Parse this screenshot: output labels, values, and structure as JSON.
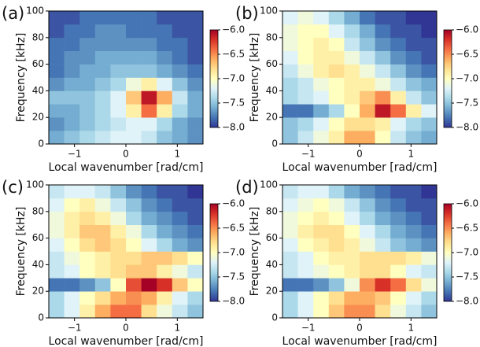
{
  "chart_data": [
    {
      "type": "heatmap",
      "title": "(a)",
      "xlabel": "Local wavenumber [rad/cm]",
      "ylabel": "Frequency [kHz]",
      "xlim": [
        -1.5,
        1.5
      ],
      "ylim": [
        0,
        100
      ],
      "xticks": [
        {
          "value": -1,
          "label": "−1"
        },
        0,
        1
      ],
      "yticks": [
        0,
        20,
        40,
        60,
        80,
        100
      ],
      "x_bins": [
        -1.5,
        -1.2,
        -0.9,
        -0.6,
        -0.3,
        0,
        0.3,
        0.6,
        0.9,
        1.2,
        1.5
      ],
      "y_bins": [
        0,
        10,
        20,
        30,
        40,
        50,
        60,
        70,
        80,
        90,
        100
      ],
      "zlim": [
        -8,
        -6
      ],
      "zticks": [
        {
          "value": -8,
          "label": "−8.0"
        },
        {
          "value": -7.5,
          "label": "−7.5"
        },
        {
          "value": -7,
          "label": "−7.0"
        },
        {
          "value": -6.5,
          "label": "−6.5"
        },
        {
          "value": -6,
          "label": "−6.0"
        }
      ],
      "colormap": [
        "#313695",
        "#4575b4",
        "#74add1",
        "#abd9e9",
        "#e0f3f8",
        "#ffffbf",
        "#fee090",
        "#fdae61",
        "#f46d43",
        "#d73027",
        "#a50026"
      ],
      "z": [
        [
          -7.6,
          -7.5,
          -7.4,
          -7.3,
          -7.2,
          -7.2,
          -7.3,
          -7.5,
          -7.6,
          -7.7
        ],
        [
          -7.7,
          -7.6,
          -7.5,
          -7.4,
          -7.3,
          -7.2,
          -7.2,
          -7.4,
          -7.6,
          -7.7
        ],
        [
          -7.6,
          -7.6,
          -7.5,
          -7.4,
          -7.2,
          -6.9,
          -6.4,
          -6.9,
          -7.4,
          -7.6
        ],
        [
          -7.5,
          -7.5,
          -7.5,
          -7.4,
          -7.2,
          -6.7,
          -6.1,
          -6.6,
          -7.3,
          -7.6
        ],
        [
          -7.7,
          -7.6,
          -7.6,
          -7.5,
          -7.4,
          -7.1,
          -6.9,
          -7.2,
          -7.5,
          -7.7
        ],
        [
          -7.8,
          -7.7,
          -7.6,
          -7.6,
          -7.5,
          -7.5,
          -7.5,
          -7.6,
          -7.7,
          -7.8
        ],
        [
          -7.8,
          -7.7,
          -7.7,
          -7.6,
          -7.6,
          -7.6,
          -7.6,
          -7.7,
          -7.8,
          -7.9
        ],
        [
          -7.8,
          -7.8,
          -7.7,
          -7.7,
          -7.7,
          -7.7,
          -7.7,
          -7.8,
          -7.8,
          -7.9
        ],
        [
          -7.9,
          -7.8,
          -7.8,
          -7.7,
          -7.7,
          -7.8,
          -7.8,
          -7.8,
          -7.9,
          -7.9
        ],
        [
          -7.9,
          -7.9,
          -7.8,
          -7.8,
          -7.8,
          -7.8,
          -7.8,
          -7.9,
          -7.9,
          -7.9
        ]
      ]
    },
    {
      "type": "heatmap",
      "title": "(b)",
      "xlabel": "Local wavenumber [rad/cm]",
      "ylabel": "Frequency [kHz]",
      "xlim": [
        -1.5,
        1.5
      ],
      "ylim": [
        0,
        100
      ],
      "xticks": [
        {
          "value": -1,
          "label": "−1"
        },
        0,
        1
      ],
      "yticks": [
        0,
        20,
        40,
        60,
        80,
        100
      ],
      "x_bins": [
        -1.5,
        -1.2,
        -0.9,
        -0.6,
        -0.3,
        0,
        0.3,
        0.6,
        0.9,
        1.2,
        1.5
      ],
      "y_bins": [
        0,
        10,
        20,
        30,
        40,
        50,
        60,
        70,
        80,
        90,
        100
      ],
      "zlim": [
        -8,
        -6
      ],
      "zticks": [
        {
          "value": -8,
          "label": "−8.0"
        },
        {
          "value": -7.5,
          "label": "−7.5"
        },
        {
          "value": -7,
          "label": "−7.0"
        },
        {
          "value": -6.5,
          "label": "−6.5"
        },
        {
          "value": -6,
          "label": "−6.0"
        }
      ],
      "colormap": [
        "#313695",
        "#4575b4",
        "#74add1",
        "#abd9e9",
        "#e0f3f8",
        "#ffffbf",
        "#fee090",
        "#fdae61",
        "#f46d43",
        "#d73027",
        "#a50026"
      ],
      "z": [
        [
          -7.5,
          -7.3,
          -7.1,
          -6.9,
          -6.6,
          -6.6,
          -7.0,
          -7.3,
          -7.5,
          -7.6
        ],
        [
          -7.5,
          -7.4,
          -7.2,
          -7.0,
          -6.8,
          -6.8,
          -6.9,
          -7.2,
          -7.4,
          -7.5
        ],
        [
          -7.8,
          -7.8,
          -7.6,
          -7.4,
          -7.0,
          -6.6,
          -6.1,
          -6.4,
          -6.9,
          -7.2
        ],
        [
          -7.4,
          -7.3,
          -7.2,
          -7.0,
          -6.9,
          -6.7,
          -6.5,
          -6.9,
          -7.3,
          -7.5
        ],
        [
          -7.4,
          -7.3,
          -7.1,
          -7.0,
          -6.9,
          -6.9,
          -7.1,
          -7.3,
          -7.5,
          -7.6
        ],
        [
          -7.3,
          -7.1,
          -6.9,
          -6.8,
          -6.9,
          -7.1,
          -7.3,
          -7.5,
          -7.7,
          -7.8
        ],
        [
          -7.2,
          -7.0,
          -6.9,
          -6.9,
          -7.1,
          -7.3,
          -7.5,
          -7.7,
          -7.8,
          -7.9
        ],
        [
          -7.1,
          -7.0,
          -6.9,
          -7.0,
          -7.3,
          -7.5,
          -7.7,
          -7.8,
          -7.9,
          -7.9
        ],
        [
          -7.1,
          -7.0,
          -7.0,
          -7.2,
          -7.4,
          -7.6,
          -7.8,
          -7.9,
          -7.9,
          -8.0
        ],
        [
          -7.2,
          -7.1,
          -7.2,
          -7.4,
          -7.6,
          -7.8,
          -7.9,
          -7.9,
          -8.0,
          -8.0
        ]
      ]
    },
    {
      "type": "heatmap",
      "title": "(c)",
      "xlabel": "Local wavenumber [rad/cm]",
      "ylabel": "Frequency [kHz]",
      "xlim": [
        -1.5,
        1.5
      ],
      "ylim": [
        0,
        100
      ],
      "xticks": [
        {
          "value": -1,
          "label": "−1"
        },
        0,
        1
      ],
      "yticks": [
        0,
        20,
        40,
        60,
        80,
        100
      ],
      "x_bins": [
        -1.5,
        -1.2,
        -0.9,
        -0.6,
        -0.3,
        0,
        0.3,
        0.6,
        0.9,
        1.2,
        1.5
      ],
      "y_bins": [
        0,
        10,
        20,
        30,
        40,
        50,
        60,
        70,
        80,
        90,
        100
      ],
      "zlim": [
        -8,
        -6
      ],
      "zticks": [
        {
          "value": -8,
          "label": "−8.0"
        },
        {
          "value": -7.5,
          "label": "−7.5"
        },
        {
          "value": -7,
          "label": "−7.0"
        },
        {
          "value": -6.5,
          "label": "−6.5"
        },
        {
          "value": -6,
          "label": "−6.0"
        }
      ],
      "colormap": [
        "#313695",
        "#4575b4",
        "#74add1",
        "#abd9e9",
        "#e0f3f8",
        "#ffffbf",
        "#fee090",
        "#fdae61",
        "#f46d43",
        "#d73027",
        "#a50026"
      ],
      "z": [
        [
          -7.4,
          -7.2,
          -6.9,
          -6.6,
          -6.4,
          -6.4,
          -6.8,
          -7.1,
          -7.3,
          -7.5
        ],
        [
          -7.4,
          -7.2,
          -7.0,
          -6.8,
          -6.6,
          -6.5,
          -6.6,
          -6.9,
          -7.2,
          -7.4
        ],
        [
          -7.8,
          -7.8,
          -7.7,
          -7.5,
          -7.0,
          -6.3,
          -6.0,
          -6.2,
          -6.7,
          -7.0
        ],
        [
          -7.3,
          -7.2,
          -7.0,
          -6.9,
          -6.8,
          -6.7,
          -6.7,
          -6.9,
          -7.1,
          -7.3
        ],
        [
          -7.3,
          -7.1,
          -7.0,
          -6.9,
          -6.8,
          -6.8,
          -6.7,
          -6.7,
          -6.8,
          -7.0
        ],
        [
          -7.2,
          -7.0,
          -6.8,
          -6.7,
          -6.8,
          -7.0,
          -7.2,
          -7.4,
          -7.6,
          -7.7
        ],
        [
          -7.1,
          -6.9,
          -6.7,
          -6.7,
          -6.9,
          -7.1,
          -7.4,
          -7.6,
          -7.7,
          -7.8
        ],
        [
          -7.1,
          -6.9,
          -6.8,
          -6.9,
          -7.1,
          -7.4,
          -7.6,
          -7.7,
          -7.8,
          -7.9
        ],
        [
          -7.2,
          -7.0,
          -6.9,
          -7.1,
          -7.3,
          -7.5,
          -7.7,
          -7.8,
          -7.9,
          -7.9
        ],
        [
          -7.3,
          -7.2,
          -7.2,
          -7.3,
          -7.5,
          -7.7,
          -7.8,
          -7.9,
          -7.9,
          -8.0
        ]
      ]
    },
    {
      "type": "heatmap",
      "title": "(d)",
      "xlabel": "Local wavenumber [rad/cm]",
      "ylabel": "Frequency [kHz]",
      "xlim": [
        -1.5,
        1.5
      ],
      "ylim": [
        0,
        100
      ],
      "xticks": [
        {
          "value": -1,
          "label": "−1"
        },
        0,
        1
      ],
      "yticks": [
        0,
        20,
        40,
        60,
        80,
        100
      ],
      "x_bins": [
        -1.5,
        -1.2,
        -0.9,
        -0.6,
        -0.3,
        0,
        0.3,
        0.6,
        0.9,
        1.2,
        1.5
      ],
      "y_bins": [
        0,
        10,
        20,
        30,
        40,
        50,
        60,
        70,
        80,
        90,
        100
      ],
      "zlim": [
        -8,
        -6
      ],
      "zticks": [
        {
          "value": -8,
          "label": "−8.0"
        },
        {
          "value": -7.5,
          "label": "−7.5"
        },
        {
          "value": -7,
          "label": "−7.0"
        },
        {
          "value": -6.5,
          "label": "−6.5"
        },
        {
          "value": -6,
          "label": "−6.0"
        }
      ],
      "colormap": [
        "#313695",
        "#4575b4",
        "#74add1",
        "#abd9e9",
        "#e0f3f8",
        "#ffffbf",
        "#fee090",
        "#fdae61",
        "#f46d43",
        "#d73027",
        "#a50026"
      ],
      "z": [
        [
          -7.4,
          -7.2,
          -7.0,
          -6.7,
          -6.5,
          -6.5,
          -6.8,
          -7.1,
          -7.3,
          -7.5
        ],
        [
          -7.4,
          -7.2,
          -7.0,
          -6.8,
          -6.6,
          -6.6,
          -6.7,
          -7.0,
          -7.2,
          -7.4
        ],
        [
          -7.8,
          -7.8,
          -7.7,
          -7.5,
          -7.1,
          -6.5,
          -6.2,
          -6.4,
          -6.8,
          -7.1
        ],
        [
          -7.3,
          -7.2,
          -7.1,
          -7.0,
          -6.9,
          -6.8,
          -6.8,
          -7.0,
          -7.2,
          -7.3
        ],
        [
          -7.3,
          -7.2,
          -7.0,
          -6.9,
          -6.9,
          -6.8,
          -6.8,
          -6.8,
          -6.9,
          -7.1
        ],
        [
          -7.2,
          -7.0,
          -6.9,
          -6.8,
          -6.9,
          -7.1,
          -7.3,
          -7.5,
          -7.6,
          -7.7
        ],
        [
          -7.1,
          -6.9,
          -6.8,
          -6.8,
          -7.0,
          -7.2,
          -7.4,
          -7.6,
          -7.7,
          -7.8
        ],
        [
          -7.1,
          -7.0,
          -6.9,
          -7.0,
          -7.2,
          -7.4,
          -7.6,
          -7.7,
          -7.8,
          -7.9
        ],
        [
          -7.2,
          -7.1,
          -7.0,
          -7.1,
          -7.3,
          -7.5,
          -7.7,
          -7.8,
          -7.9,
          -7.9
        ],
        [
          -7.3,
          -7.2,
          -7.2,
          -7.4,
          -7.6,
          -7.7,
          -7.8,
          -7.9,
          -7.9,
          -8.0
        ]
      ]
    }
  ]
}
